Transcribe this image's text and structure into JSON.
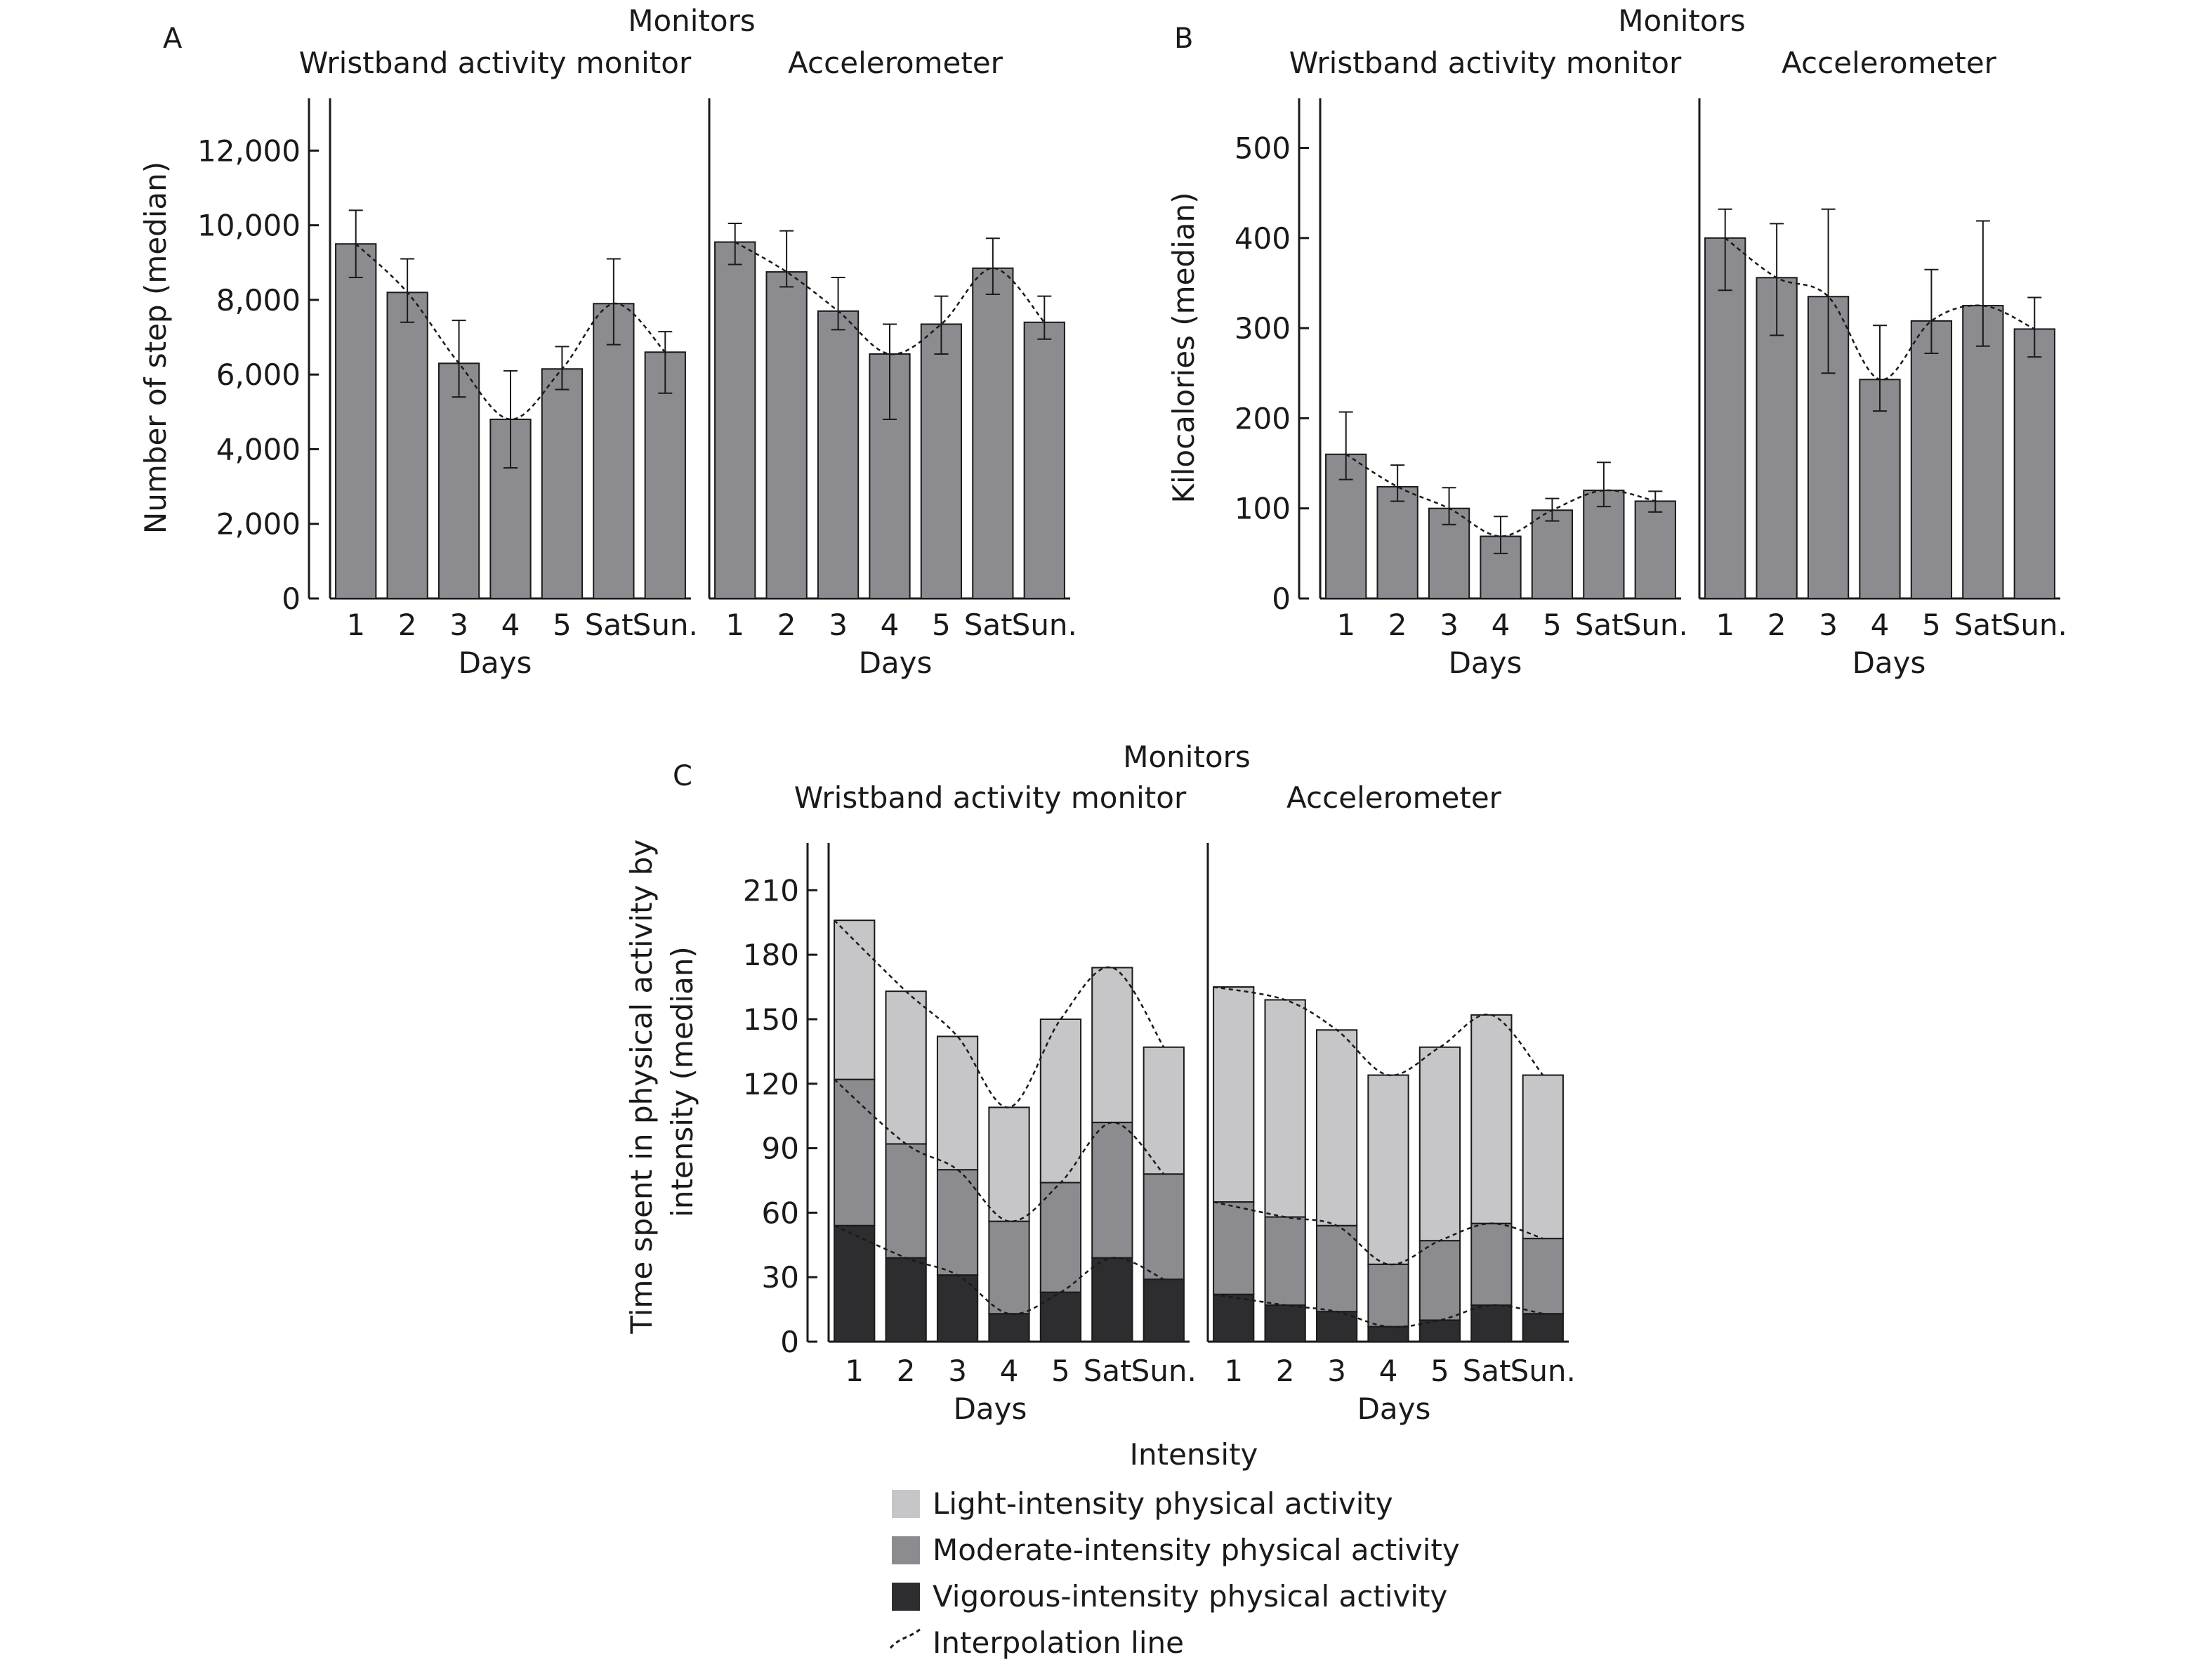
{
  "figure": {
    "panel_letters": [
      "A",
      "B",
      "C"
    ],
    "monitors_label": "Monitors",
    "monitor_names": [
      "Wristband activity monitor",
      "Accelerometer"
    ],
    "days_label": "Days"
  },
  "colors": {
    "bar": "#8c8c90",
    "light": "#c6c6c8",
    "moderate": "#8c8c90",
    "vigorous": "#2d2d30",
    "axis": "#1a1a1a",
    "line": "#1a1a1a"
  },
  "legend": {
    "title": "Intensity",
    "items": [
      {
        "label": "Light-intensity physical activity",
        "swatch": "light"
      },
      {
        "label": "Moderate-intensity physical activity",
        "swatch": "moderate"
      },
      {
        "label": "Vigorous-intensity physical activity",
        "swatch": "vigorous"
      },
      {
        "label": "Interpolation line",
        "swatch": "line"
      }
    ]
  },
  "chart_data": [
    {
      "panel": "A",
      "type": "bar",
      "title": "",
      "ylabel": "Number of step (median)",
      "xlabel": "Days",
      "categories": [
        "1",
        "2",
        "3",
        "4",
        "5",
        "Sat.",
        "Sun."
      ],
      "ylim": [
        0,
        13400
      ],
      "yticks": [
        0,
        2000,
        4000,
        6000,
        8000,
        10000,
        12000
      ],
      "ytick_labels": [
        "0",
        "2,000",
        "4,000",
        "6,000",
        "8,000",
        "10,000",
        "12,000"
      ],
      "grid": false,
      "facets": [
        {
          "name": "Wristband activity monitor",
          "values": [
            9500,
            8200,
            6300,
            4800,
            6150,
            7900,
            6600
          ],
          "err_low": [
            8600,
            7400,
            5400,
            3500,
            5600,
            6800,
            5500
          ],
          "err_high": [
            10400,
            9100,
            7450,
            6100,
            6750,
            9100,
            7150
          ]
        },
        {
          "name": "Accelerometer",
          "values": [
            9550,
            8750,
            7700,
            6550,
            7350,
            8850,
            7400
          ],
          "err_low": [
            8950,
            8350,
            7200,
            4800,
            6550,
            8150,
            6950
          ],
          "err_high": [
            10050,
            9850,
            8600,
            7350,
            8100,
            9650,
            8100
          ]
        }
      ]
    },
    {
      "panel": "B",
      "type": "bar",
      "title": "",
      "ylabel": "Kilocalories (median)",
      "xlabel": "Days",
      "categories": [
        "1",
        "2",
        "3",
        "4",
        "5",
        "Sat.",
        "Sun."
      ],
      "ylim": [
        0,
        555
      ],
      "yticks": [
        0,
        100,
        200,
        300,
        400,
        500
      ],
      "ytick_labels": [
        "0",
        "100",
        "200",
        "300",
        "400",
        "500"
      ],
      "grid": false,
      "facets": [
        {
          "name": "Wristband activity monitor",
          "values": [
            160,
            124,
            100,
            69,
            98,
            120,
            108
          ],
          "err_low": [
            132,
            108,
            82,
            50,
            86,
            102,
            96
          ],
          "err_high": [
            207,
            148,
            123,
            91,
            111,
            151,
            119
          ]
        },
        {
          "name": "Accelerometer",
          "values": [
            400,
            356,
            335,
            243,
            308,
            325,
            299
          ],
          "err_low": [
            342,
            292,
            250,
            208,
            272,
            280,
            268
          ],
          "err_high": [
            432,
            416,
            432,
            303,
            365,
            419,
            334
          ]
        }
      ]
    },
    {
      "panel": "C",
      "type": "bar",
      "stacked": true,
      "title": "",
      "ylabel": "Time spent in physical activity by intensity (median)",
      "xlabel": "Days",
      "categories": [
        "1",
        "2",
        "3",
        "4",
        "5",
        "Sat.",
        "Sun."
      ],
      "ylim": [
        0,
        232
      ],
      "yticks": [
        0,
        30,
        60,
        90,
        120,
        150,
        180,
        210
      ],
      "ytick_labels": [
        "0",
        "30",
        "60",
        "90",
        "120",
        "150",
        "180",
        "210"
      ],
      "grid": false,
      "legend_title": "Intensity",
      "facets": [
        {
          "name": "Wristband activity monitor",
          "series": [
            {
              "name": "Vigorous-intensity physical activity",
              "values": [
                54,
                39,
                31,
                13,
                23,
                39,
                29
              ]
            },
            {
              "name": "Moderate-intensity physical activity",
              "values": [
                68,
                53,
                49,
                43,
                51,
                63,
                49
              ]
            },
            {
              "name": "Light-intensity physical activity",
              "values": [
                74,
                71,
                62,
                53,
                76,
                72,
                59
              ]
            }
          ],
          "totals": [
            196,
            163,
            142,
            109,
            150,
            174,
            137
          ]
        },
        {
          "name": "Accelerometer",
          "series": [
            {
              "name": "Vigorous-intensity physical activity",
              "values": [
                22,
                17,
                14,
                7,
                10,
                17,
                13
              ]
            },
            {
              "name": "Moderate-intensity physical activity",
              "values": [
                43,
                41,
                40,
                29,
                37,
                38,
                35
              ]
            },
            {
              "name": "Light-intensity physical activity",
              "values": [
                100,
                101,
                91,
                88,
                90,
                97,
                76
              ]
            }
          ],
          "totals": [
            165,
            159,
            145,
            124,
            137,
            152,
            124
          ]
        }
      ]
    }
  ]
}
